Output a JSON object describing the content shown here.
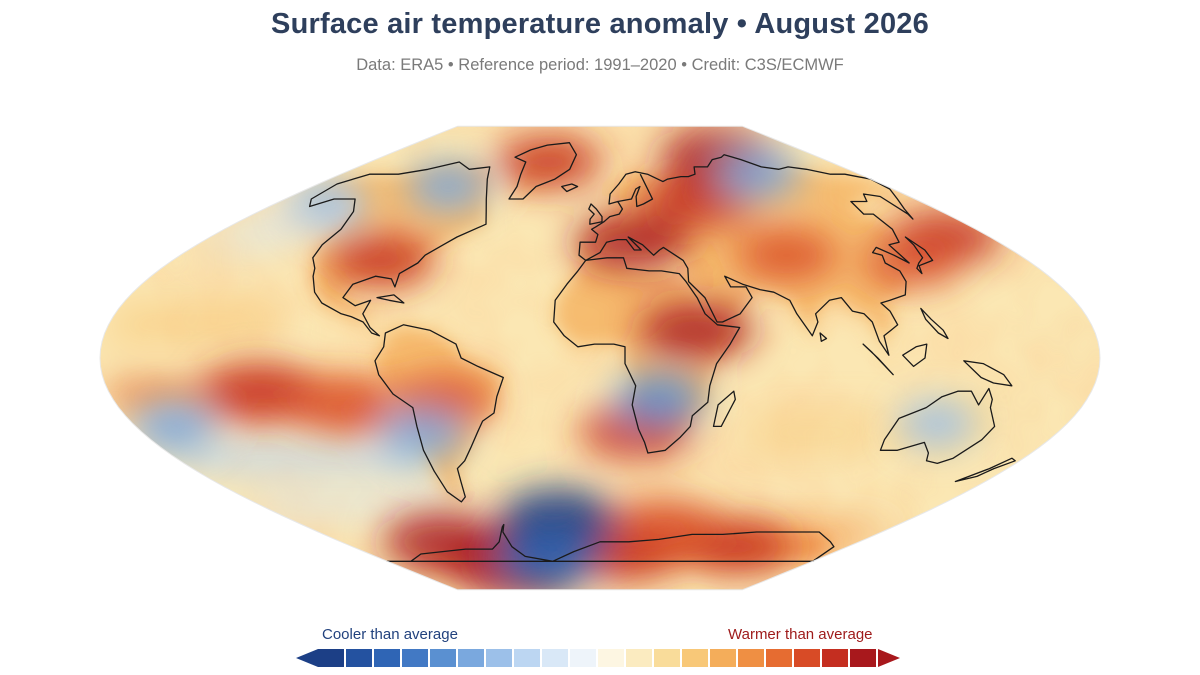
{
  "title": "Surface air temperature anomaly • August 2026",
  "subtitle": "Data: ERA5 • Reference period: 1991–2020 • Credit: C3S/ECMWF",
  "legend": {
    "cool_label": "Cooler than average",
    "warm_label": "Warmer than average",
    "colors": [
      "#1c3f86",
      "#2452a0",
      "#2f65b5",
      "#4279c4",
      "#5a90d1",
      "#7aa8de",
      "#9cc0e9",
      "#bcd6f2",
      "#d9e8f7",
      "#eef4fa",
      "#fdf6e2",
      "#fbebc0",
      "#f9dc9a",
      "#f8c878",
      "#f4ad5a",
      "#ef8f43",
      "#e66c31",
      "#d84b26",
      "#c42e20",
      "#a8181c"
    ]
  },
  "colors": {
    "title": "#2e3f5c",
    "subtitle": "#7a7a7a",
    "cool_text": "#22427e",
    "warm_text": "#9e1a1a",
    "ocean_base": "#fbe7b3",
    "land_base": "#f6cf86",
    "coast": "#1a1a1a"
  },
  "map": {
    "projection": "robinson",
    "hotspots": [
      {
        "lon": -75,
        "lat": -78,
        "level": 0.95
      },
      {
        "lon": -110,
        "lat": -70,
        "level": 0.9
      },
      {
        "lon": 20,
        "lat": -75,
        "level": 0.75
      },
      {
        "lon": 100,
        "lat": -72,
        "level": 0.7
      },
      {
        "lon": 40,
        "lat": -63,
        "level": 0.6
      },
      {
        "lon": -125,
        "lat": -12,
        "level": 0.8
      },
      {
        "lon": -95,
        "lat": -18,
        "level": 0.6
      },
      {
        "lon": -92,
        "lat": 36,
        "level": 0.7
      },
      {
        "lon": 14,
        "lat": 43,
        "level": 0.85
      },
      {
        "lon": 35,
        "lat": 10,
        "level": 0.85
      },
      {
        "lon": 57,
        "lat": 60,
        "level": 0.8
      },
      {
        "lon": 100,
        "lat": 78,
        "level": 0.85
      },
      {
        "lon": 160,
        "lat": 45,
        "level": 0.8
      },
      {
        "lon": -40,
        "lat": 75,
        "level": 0.7
      },
      {
        "lon": 14,
        "lat": -27,
        "level": 0.75
      },
      {
        "lon": -58,
        "lat": -15,
        "level": 0.6
      },
      {
        "lon": 80,
        "lat": 38,
        "level": 0.6
      },
      {
        "lon": 130,
        "lat": 35,
        "level": 0.55
      }
    ],
    "coldspots": [
      {
        "lon": -25,
        "lat": -62,
        "level": 1.0
      },
      {
        "lon": -45,
        "lat": -78,
        "level": 0.7
      },
      {
        "lon": 22,
        "lat": -15,
        "level": 0.5
      },
      {
        "lon": -70,
        "lat": -28,
        "level": 0.45
      },
      {
        "lon": -165,
        "lat": -25,
        "level": 0.4
      },
      {
        "lon": 110,
        "lat": 70,
        "level": 0.4
      },
      {
        "lon": -95,
        "lat": 65,
        "level": 0.35
      },
      {
        "lon": 130,
        "lat": -24,
        "level": 0.3
      },
      {
        "lon": -150,
        "lat": 58,
        "level": 0.3
      }
    ]
  }
}
